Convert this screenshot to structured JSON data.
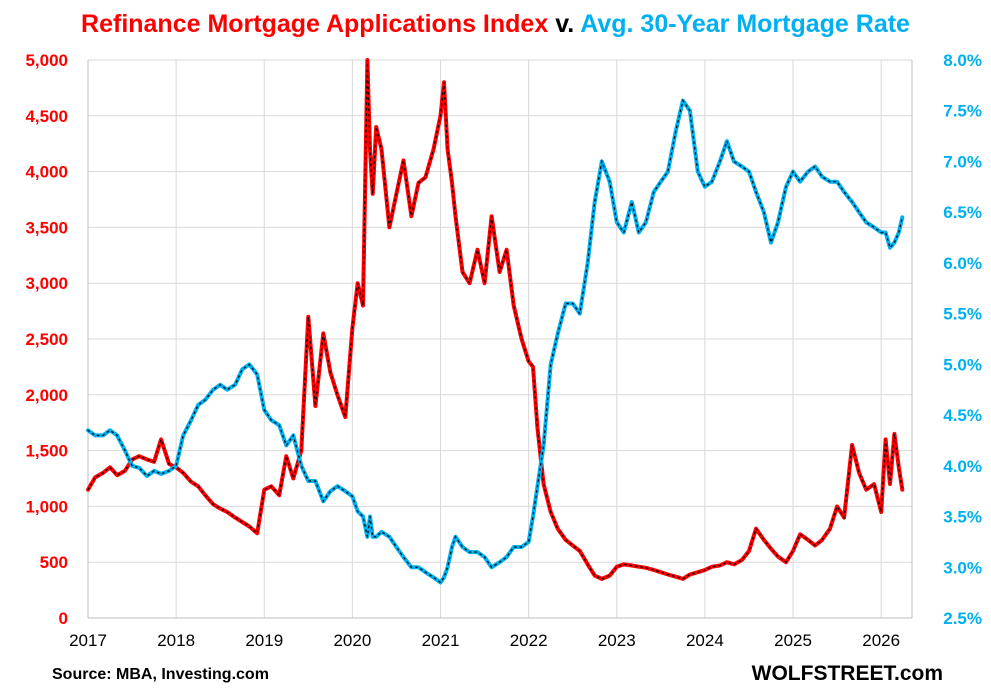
{
  "title": {
    "part1": "Refinance Mortgage Applications Index",
    "part2": "v.",
    "part3": "Avg. 30-Year Mortgage Rate"
  },
  "source": "Source: MBA, Investing.com",
  "brand": "WOLFSTREET.com",
  "chart_data": {
    "type": "line",
    "title": "Refinance Mortgage Applications Index v. Avg. 30-Year Mortgage Rate",
    "xlabel": "",
    "ylabel": "",
    "x_ticks": [
      "2017",
      "2018",
      "2019",
      "2020",
      "2021",
      "2022",
      "2023",
      "2024",
      "2025",
      "2026"
    ],
    "x_range": [
      2017.0,
      2026.35
    ],
    "y_left": {
      "range": [
        0,
        5000
      ],
      "ticks": [
        "0",
        "500",
        "1,000",
        "1,500",
        "2,000",
        "2,500",
        "3,000",
        "3,500",
        "4,000",
        "4,500",
        "5,000"
      ],
      "color": "#ff0000"
    },
    "y_right": {
      "range": [
        2.5,
        8.0
      ],
      "ticks": [
        "2.5%",
        "3.0%",
        "3.5%",
        "4.0%",
        "4.5%",
        "5.0%",
        "5.5%",
        "6.0%",
        "6.5%",
        "7.0%",
        "7.5%",
        "8.0%"
      ],
      "color": "#00b0f0"
    },
    "grid": true,
    "series": [
      {
        "axis": "left",
        "color": "#ff0000",
        "x": [
          2017.0,
          2017.08,
          2017.17,
          2017.25,
          2017.33,
          2017.42,
          2017.5,
          2017.58,
          2017.67,
          2017.75,
          2017.83,
          2017.92,
          2018.0,
          2018.08,
          2018.17,
          2018.25,
          2018.33,
          2018.42,
          2018.5,
          2018.58,
          2018.67,
          2018.75,
          2018.83,
          2018.92,
          2019.0,
          2019.08,
          2019.17,
          2019.25,
          2019.33,
          2019.42,
          2019.5,
          2019.58,
          2019.67,
          2019.75,
          2019.83,
          2019.92,
          2020.0,
          2020.06,
          2020.12,
          2020.17,
          2020.2,
          2020.23,
          2020.27,
          2020.33,
          2020.42,
          2020.5,
          2020.58,
          2020.67,
          2020.75,
          2020.83,
          2020.92,
          2021.0,
          2021.04,
          2021.08,
          2021.13,
          2021.17,
          2021.25,
          2021.33,
          2021.42,
          2021.5,
          2021.58,
          2021.67,
          2021.75,
          2021.83,
          2021.92,
          2022.0,
          2022.05,
          2022.1,
          2022.17,
          2022.25,
          2022.33,
          2022.42,
          2022.5,
          2022.58,
          2022.67,
          2022.75,
          2022.83,
          2022.92,
          2023.0,
          2023.08,
          2023.17,
          2023.25,
          2023.33,
          2023.42,
          2023.5,
          2023.58,
          2023.67,
          2023.75,
          2023.83,
          2023.92,
          2024.0,
          2024.08,
          2024.17,
          2024.25,
          2024.33,
          2024.42,
          2024.5,
          2024.58,
          2024.67,
          2024.75,
          2024.83,
          2024.92,
          2025.0,
          2025.08,
          2025.17,
          2025.25,
          2025.33,
          2025.42,
          2025.5,
          2025.58,
          2025.67,
          2025.75,
          2025.83,
          2025.92,
          2026.0,
          2026.05,
          2026.1,
          2026.15,
          2026.2,
          2026.24
        ],
        "values": [
          1150,
          1260,
          1300,
          1350,
          1280,
          1320,
          1420,
          1450,
          1420,
          1400,
          1600,
          1380,
          1350,
          1300,
          1220,
          1180,
          1100,
          1020,
          980,
          950,
          900,
          860,
          820,
          760,
          1150,
          1180,
          1100,
          1450,
          1250,
          1500,
          2700,
          1900,
          2550,
          2200,
          2000,
          1800,
          2600,
          3000,
          2800,
          5000,
          4200,
          3800,
          4400,
          4200,
          3500,
          3800,
          4100,
          3600,
          3900,
          3950,
          4200,
          4500,
          4800,
          4200,
          3900,
          3600,
          3100,
          3000,
          3300,
          3000,
          3600,
          3100,
          3300,
          2800,
          2500,
          2300,
          2250,
          1700,
          1200,
          950,
          800,
          700,
          650,
          600,
          480,
          380,
          350,
          380,
          460,
          480,
          470,
          460,
          450,
          430,
          410,
          390,
          370,
          350,
          390,
          410,
          430,
          460,
          470,
          500,
          480,
          520,
          600,
          800,
          700,
          620,
          550,
          500,
          600,
          750,
          700,
          650,
          700,
          800,
          1000,
          900,
          1550,
          1300,
          1150,
          1200,
          950,
          1600,
          1200,
          1650,
          1350,
          1150
        ]
      },
      {
        "axis": "right",
        "color": "#00b0f0",
        "x": [
          2017.0,
          2017.08,
          2017.17,
          2017.25,
          2017.33,
          2017.42,
          2017.5,
          2017.58,
          2017.67,
          2017.75,
          2017.83,
          2017.92,
          2018.0,
          2018.08,
          2018.17,
          2018.25,
          2018.33,
          2018.42,
          2018.5,
          2018.58,
          2018.67,
          2018.75,
          2018.83,
          2018.92,
          2019.0,
          2019.08,
          2019.17,
          2019.25,
          2019.33,
          2019.42,
          2019.5,
          2019.58,
          2019.67,
          2019.75,
          2019.83,
          2019.92,
          2020.0,
          2020.06,
          2020.12,
          2020.17,
          2020.2,
          2020.23,
          2020.27,
          2020.33,
          2020.42,
          2020.5,
          2020.58,
          2020.67,
          2020.75,
          2020.83,
          2020.92,
          2021.0,
          2021.04,
          2021.08,
          2021.13,
          2021.17,
          2021.25,
          2021.33,
          2021.42,
          2021.5,
          2021.58,
          2021.67,
          2021.75,
          2021.83,
          2021.92,
          2022.0,
          2022.05,
          2022.1,
          2022.17,
          2022.25,
          2022.33,
          2022.42,
          2022.5,
          2022.58,
          2022.67,
          2022.75,
          2022.83,
          2022.92,
          2023.0,
          2023.08,
          2023.17,
          2023.25,
          2023.33,
          2023.42,
          2023.5,
          2023.58,
          2023.67,
          2023.75,
          2023.83,
          2023.92,
          2024.0,
          2024.08,
          2024.17,
          2024.25,
          2024.33,
          2024.42,
          2024.5,
          2024.58,
          2024.67,
          2024.75,
          2024.83,
          2024.92,
          2025.0,
          2025.08,
          2025.17,
          2025.25,
          2025.33,
          2025.42,
          2025.5,
          2025.58,
          2025.67,
          2025.75,
          2025.83,
          2025.92,
          2026.0,
          2026.05,
          2026.1,
          2026.15,
          2026.2,
          2026.24
        ],
        "values": [
          4.35,
          4.3,
          4.3,
          4.35,
          4.3,
          4.15,
          4.0,
          3.98,
          3.9,
          3.95,
          3.92,
          3.95,
          4.0,
          4.3,
          4.45,
          4.6,
          4.65,
          4.75,
          4.8,
          4.75,
          4.8,
          4.95,
          5.0,
          4.9,
          4.55,
          4.45,
          4.4,
          4.2,
          4.3,
          4.0,
          3.85,
          3.85,
          3.65,
          3.75,
          3.8,
          3.75,
          3.7,
          3.55,
          3.5,
          3.3,
          3.5,
          3.3,
          3.3,
          3.35,
          3.3,
          3.2,
          3.1,
          3.0,
          3.0,
          2.95,
          2.9,
          2.85,
          2.9,
          3.0,
          3.2,
          3.3,
          3.2,
          3.15,
          3.15,
          3.1,
          3.0,
          3.05,
          3.1,
          3.2,
          3.2,
          3.25,
          3.5,
          3.8,
          4.2,
          5.0,
          5.3,
          5.6,
          5.6,
          5.5,
          6.0,
          6.6,
          7.0,
          6.8,
          6.4,
          6.3,
          6.6,
          6.3,
          6.4,
          6.7,
          6.8,
          6.9,
          7.3,
          7.6,
          7.5,
          6.9,
          6.75,
          6.8,
          7.0,
          7.2,
          7.0,
          6.95,
          6.9,
          6.7,
          6.5,
          6.2,
          6.4,
          6.75,
          6.9,
          6.8,
          6.9,
          6.95,
          6.85,
          6.8,
          6.8,
          6.7,
          6.6,
          6.5,
          6.4,
          6.35,
          6.3,
          6.3,
          6.15,
          6.2,
          6.3,
          6.45
        ]
      }
    ]
  }
}
